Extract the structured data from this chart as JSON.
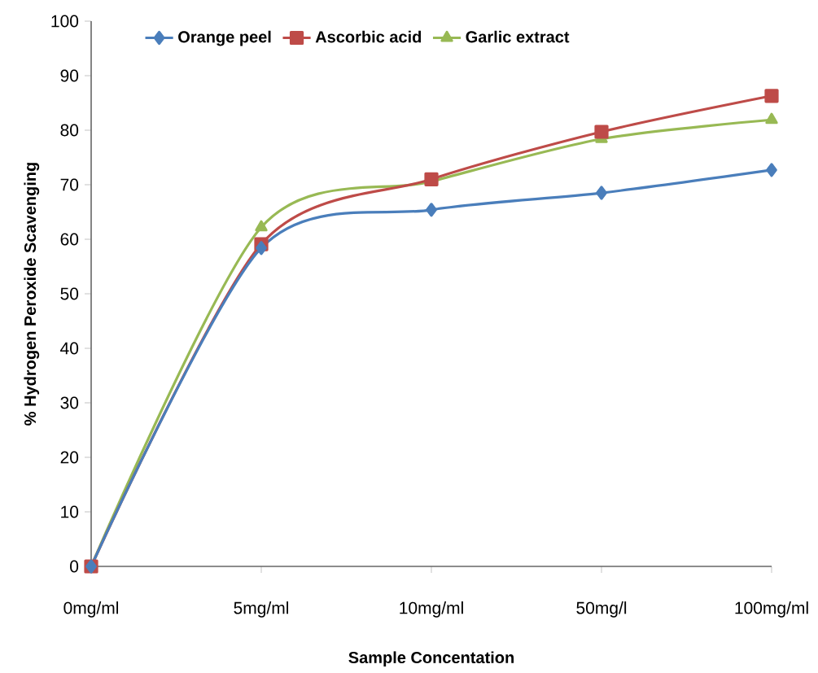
{
  "chart_data": {
    "type": "line",
    "xlabel": "Sample Concentation",
    "ylabel": "% Hydrogen Peroxide Scavenging",
    "categories": [
      "0mg/ml",
      "5mg/ml",
      "10mg/ml",
      "50mg/l",
      "100mg/ml"
    ],
    "ylim": [
      0,
      100
    ],
    "yticks": [
      0,
      10,
      20,
      30,
      40,
      50,
      60,
      70,
      80,
      90,
      100
    ],
    "grid": false,
    "legend": "top",
    "line_style": "solid",
    "series": [
      {
        "name": "Orange peel",
        "color": "#4a7ebb",
        "marker": "diamond",
        "values": [
          0,
          58.4,
          65.4,
          68.5,
          72.7
        ]
      },
      {
        "name": "Ascorbic acid",
        "color": "#be4b48",
        "marker": "square",
        "values": [
          0,
          59.1,
          71.0,
          79.7,
          86.3
        ]
      },
      {
        "name": "Garlic extract",
        "color": "#98b954",
        "marker": "triangle",
        "values": [
          0,
          62.2,
          70.6,
          78.4,
          81.9
        ]
      }
    ]
  }
}
